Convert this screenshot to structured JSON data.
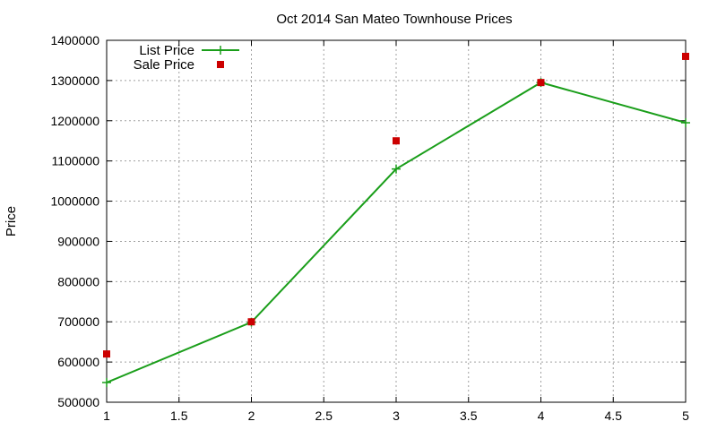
{
  "chart_data": {
    "type": "line",
    "title": "Oct 2014 San Mateo Townhouse Prices",
    "xlabel": "",
    "ylabel": "Price",
    "xlim": [
      1,
      5
    ],
    "ylim": [
      500000,
      1400000
    ],
    "x_ticks": [
      "1",
      "1.5",
      "2",
      "2.5",
      "3",
      "3.5",
      "4",
      "4.5",
      "5"
    ],
    "y_ticks": [
      "500000",
      "600000",
      "700000",
      "800000",
      "900000",
      "1000000",
      "1100000",
      "1200000",
      "1300000",
      "1400000"
    ],
    "grid": true,
    "legend_position": "top-left",
    "series": [
      {
        "name": "List Price",
        "style": "lines+points",
        "marker": "plus",
        "color": "#1a9e1a",
        "x": [
          1,
          2,
          3,
          4,
          5
        ],
        "y": [
          549000,
          699000,
          1080000,
          1295000,
          1195000
        ]
      },
      {
        "name": "Sale Price",
        "style": "points",
        "marker": "square",
        "color": "#cc0000",
        "x": [
          1,
          2,
          3,
          4,
          5
        ],
        "y": [
          620000,
          700000,
          1150000,
          1295000,
          1360000
        ]
      }
    ]
  }
}
